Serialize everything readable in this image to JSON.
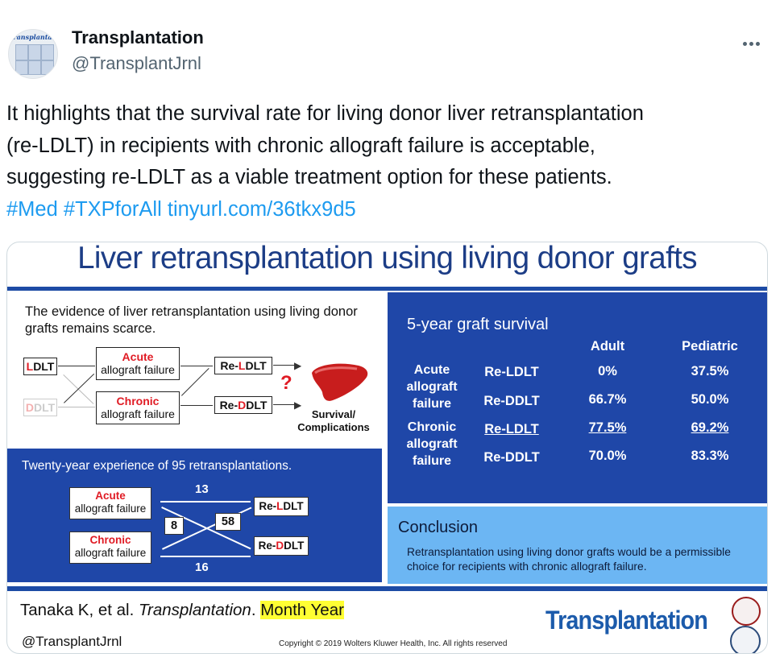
{
  "tweet": {
    "display_name": "Transplantation",
    "handle": "@TransplantJrnl",
    "avatar_title": "Transplantation",
    "more_icon": "ellipsis-icon",
    "text_line1": "It highlights that the survival rate for living donor liver retransplantation",
    "text_line2": "(re-LDLT) in recipients with chronic allograft failure is acceptable,",
    "text_line3": "suggesting re-LDLT as a viable treatment option for these patients.",
    "hashtag1": "#Med",
    "hashtag2": "#TXPforAll",
    "link": "tinyurl.com/36tkx9d5"
  },
  "slide": {
    "title": "Liver retransplantation using living donor grafts",
    "evidence": {
      "text": "The evidence of liver retransplantation using living donor grafts remains scarce.",
      "ldlt_l": "L",
      "ldlt_rest": "DLT",
      "ddlt_d": "D",
      "ddlt_rest": "DLT",
      "acute_word": "Acute",
      "acute_sub": "allograft failure",
      "chronic_word": "Chronic",
      "chronic_sub": "allograft failure",
      "reldlt_pre": "Re-",
      "reldlt_l": "L",
      "reldlt_post": "DLT",
      "reddlt_pre": "Re-",
      "reddlt_d": "D",
      "reddlt_post": "DLT",
      "question": "?",
      "outcome_line1": "Survival/",
      "outcome_line2": "Complications"
    },
    "experience": {
      "title": "Twenty-year experience of 95 retransplantations.",
      "acute_word": "Acute",
      "acute_sub": "allograft failure",
      "chronic_word": "Chronic",
      "chronic_sub": "allograft failure",
      "reldlt_pre": "Re-",
      "reldlt_l": "L",
      "reldlt_post": "DLT",
      "reddlt_pre": "Re-",
      "reddlt_d": "D",
      "reddlt_post": "DLT",
      "n_acute_ldlt": "13",
      "n_acute_ddlt": "8",
      "n_chronic_ldlt": "58",
      "n_chronic_ddlt": "16"
    },
    "survival": {
      "title": "5-year graft survival",
      "col_adult": "Adult",
      "col_pediatric": "Pediatric",
      "group_acute": [
        "Acute",
        "allograft",
        "failure"
      ],
      "group_chronic": [
        "Chronic",
        "allograft",
        "failure"
      ],
      "rows": [
        {
          "procedure": "Re-LDLT",
          "adult": "0%",
          "pediatric": "37.5%"
        },
        {
          "procedure": "Re-DDLT",
          "adult": "66.7%",
          "pediatric": "50.0%"
        },
        {
          "procedure": "Re-LDLT",
          "adult": "77.5%",
          "pediatric": "69.2%"
        },
        {
          "procedure": "Re-DDLT",
          "adult": "70.0%",
          "pediatric": "83.3%"
        }
      ]
    },
    "conclusion": {
      "title": "Conclusion",
      "text": "Retransplantation using living donor grafts would be a permissible choice for recipients with chronic allograft failure."
    },
    "footer": {
      "citation_authors": "Tanaka K, et al. ",
      "citation_journal": "Transplantation",
      "citation_dot": ". ",
      "citation_date": "Month Year",
      "handle": "@TransplantJrnl",
      "copyright": "Copyright © 2019 Wolters Kluwer Health, Inc. All rights reserved",
      "logo": "Transplantation"
    },
    "colors": {
      "panel_blue": "#1f47a8",
      "conclusion_blue": "#6cb6f3",
      "title_blue": "#1c3d86",
      "accent_red": "#e01b24",
      "link_blue": "#1d9bf0",
      "highlight": "#ffff33"
    }
  }
}
